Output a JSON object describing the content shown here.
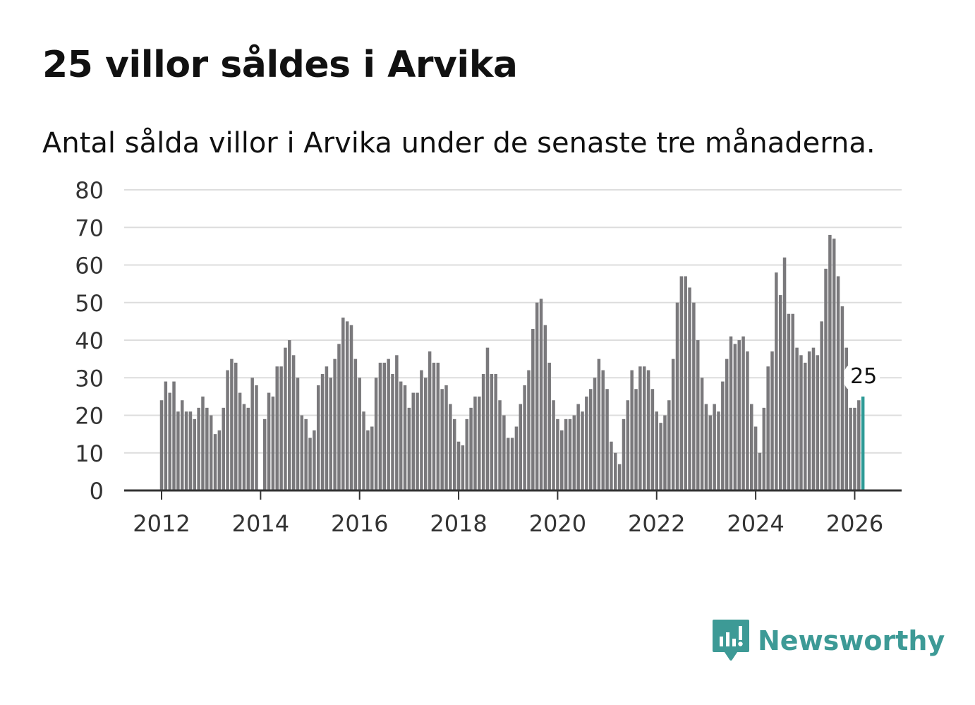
{
  "title": "25 villor såldes i Arvika",
  "subtitle": "Antal sålda villor i Arvika under de senaste tre månaderna.",
  "brand": "Newsworthy",
  "colors": {
    "bar": "#7a797c",
    "highlight": "#2e9a96",
    "grid": "#dddddd",
    "axis": "#333333",
    "brand": "#3d9a96"
  },
  "chart_data": {
    "type": "bar",
    "title": "25 villor såldes i Arvika",
    "xlabel": "",
    "ylabel": "",
    "ylim": [
      0,
      80
    ],
    "yticks": [
      0,
      10,
      20,
      30,
      40,
      50,
      60,
      70,
      80
    ],
    "yticks_labels": [
      "0",
      "10",
      "20",
      "30",
      "40",
      "50",
      "60",
      "70",
      "80"
    ],
    "xticks": [
      "2012",
      "2014",
      "2016",
      "2018",
      "2020",
      "2022",
      "2024",
      "2026"
    ],
    "start": "2012-01",
    "frequency": "monthly",
    "series": [
      {
        "name": "Antal sålda villor",
        "values": [
          24,
          29,
          26,
          29,
          21,
          24,
          21,
          21,
          19,
          22,
          25,
          22,
          20,
          15,
          16,
          22,
          32,
          35,
          34,
          26,
          23,
          22,
          30,
          28,
          0,
          19,
          26,
          25,
          33,
          33,
          38,
          40,
          36,
          30,
          20,
          19,
          14,
          16,
          28,
          31,
          33,
          30,
          35,
          39,
          46,
          45,
          44,
          35,
          30,
          21,
          16,
          17,
          30,
          34,
          34,
          35,
          31,
          36,
          29,
          28,
          22,
          26,
          26,
          32,
          30,
          37,
          34,
          34,
          27,
          28,
          23,
          19,
          13,
          12,
          19,
          22,
          25,
          25,
          31,
          38,
          31,
          31,
          24,
          20,
          14,
          14,
          17,
          23,
          28,
          32,
          43,
          50,
          51,
          44,
          34,
          24,
          19,
          16,
          19,
          19,
          20,
          23,
          21,
          25,
          27,
          30,
          35,
          32,
          27,
          13,
          10,
          7,
          19,
          24,
          32,
          27,
          33,
          33,
          32,
          27,
          21,
          18,
          20,
          24,
          35,
          50,
          57,
          57,
          54,
          50,
          40,
          30,
          23,
          20,
          23,
          21,
          29,
          35,
          41,
          39,
          40,
          41,
          37,
          23,
          17,
          10,
          22,
          33,
          37,
          58,
          52,
          62,
          47,
          47,
          38,
          36,
          34,
          37,
          38,
          36,
          45,
          59,
          68,
          67,
          57,
          49,
          38,
          22,
          22,
          24,
          25
        ]
      }
    ],
    "annotations": [
      {
        "label": "25",
        "value": 25,
        "period": "2026-03"
      }
    ]
  }
}
